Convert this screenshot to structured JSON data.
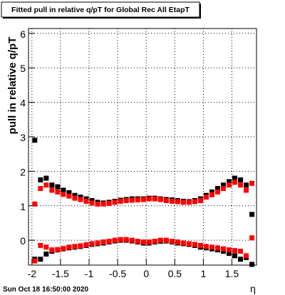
{
  "chart_data": {
    "type": "scatter",
    "title": "Fitted pull in relative q/pT  for Global Rec All EtapT",
    "y_label": "pull in relative q/pT",
    "x_label": "η",
    "footer": "Sun Oct 18 16:50:00 2020",
    "x": [
      -1.95,
      -1.85,
      -1.75,
      -1.65,
      -1.55,
      -1.45,
      -1.35,
      -1.25,
      -1.15,
      -1.05,
      -0.95,
      -0.85,
      -0.75,
      -0.65,
      -0.55,
      -0.45,
      -0.35,
      -0.25,
      -0.15,
      -0.05,
      0.05,
      0.15,
      0.25,
      0.35,
      0.45,
      0.55,
      0.65,
      0.75,
      0.85,
      0.95,
      1.05,
      1.15,
      1.25,
      1.35,
      1.45,
      1.55,
      1.65,
      1.75,
      1.85
    ],
    "series": [
      {
        "color": "#000000",
        "values": [
          2.9,
          1.75,
          1.8,
          1.6,
          1.55,
          1.45,
          1.38,
          1.3,
          1.25,
          1.2,
          1.15,
          1.1,
          1.08,
          1.1,
          1.13,
          1.16,
          1.18,
          1.2,
          1.2,
          1.2,
          1.22,
          1.22,
          1.2,
          1.18,
          1.17,
          1.15,
          1.13,
          1.12,
          1.15,
          1.2,
          1.3,
          1.4,
          1.5,
          1.6,
          1.7,
          1.8,
          1.75,
          1.6,
          0.75
        ]
      },
      {
        "color": "#000000",
        "values": [
          -0.55,
          -0.55,
          -0.4,
          -0.32,
          -0.28,
          -0.25,
          -0.22,
          -0.2,
          -0.18,
          -0.15,
          -0.12,
          -0.1,
          -0.08,
          -0.05,
          -0.02,
          0.0,
          0.0,
          -0.02,
          -0.05,
          -0.08,
          -0.08,
          -0.05,
          -0.03,
          -0.02,
          -0.05,
          -0.08,
          -0.1,
          -0.12,
          -0.15,
          -0.2,
          -0.22,
          -0.25,
          -0.28,
          -0.32,
          -0.38,
          -0.45,
          -0.55,
          -0.5,
          -0.7
        ]
      },
      {
        "color": "#ff0000",
        "values": [
          1.05,
          1.5,
          1.6,
          1.45,
          1.4,
          1.33,
          1.28,
          1.22,
          1.18,
          1.13,
          1.08,
          1.05,
          1.05,
          1.07,
          1.1,
          1.13,
          1.15,
          1.16,
          1.17,
          1.18,
          1.2,
          1.2,
          1.18,
          1.15,
          1.13,
          1.12,
          1.1,
          1.1,
          1.12,
          1.15,
          1.25,
          1.32,
          1.4,
          1.5,
          1.6,
          1.68,
          1.6,
          1.45,
          1.65
        ]
      },
      {
        "color": "#ff0000",
        "values": [
          -0.6,
          -0.15,
          -0.2,
          -0.28,
          -0.27,
          -0.24,
          -0.2,
          -0.18,
          -0.16,
          -0.13,
          -0.1,
          -0.08,
          -0.05,
          -0.03,
          0.0,
          0.02,
          0.02,
          0.0,
          -0.03,
          -0.05,
          -0.05,
          -0.03,
          0.0,
          0.0,
          -0.03,
          -0.05,
          -0.08,
          -0.1,
          -0.12,
          -0.15,
          -0.18,
          -0.2,
          -0.22,
          -0.25,
          -0.28,
          -0.3,
          -0.32,
          -0.45,
          0.07
        ]
      }
    ],
    "xlim": [
      -2.06,
      1.93
    ],
    "ylim": [
      -0.72,
      6.14
    ],
    "xticks": [
      -2,
      -1.5,
      -1,
      -0.5,
      0,
      0.5,
      1,
      1.5
    ],
    "yticks": [
      0,
      1,
      2,
      3,
      4,
      5,
      6
    ],
    "grid": true
  }
}
